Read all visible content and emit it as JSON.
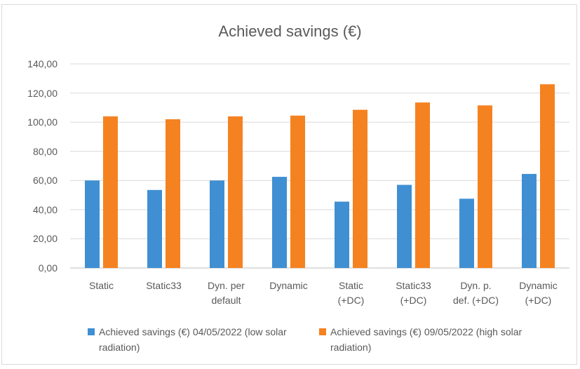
{
  "chart_data": {
    "type": "bar",
    "title": "Achieved savings  (€)",
    "categories": [
      "Static",
      "Static33",
      "Dyn. per default",
      "Dynamic",
      "Static (+DC)",
      "Static33 (+DC)",
      "Dyn. p. def. (+DC)",
      "Dynamic (+DC)"
    ],
    "series": [
      {
        "name": "Achieved savings  (€) 04/05/2022 (low solar radiation)",
        "color": "#3f8fd2",
        "values": [
          60,
          53.5,
          60,
          62.5,
          45.5,
          57,
          47.5,
          64.5
        ]
      },
      {
        "name": "Achieved savings  (€) 09/05/2022 (high solar radiation)",
        "color": "#f58220",
        "values": [
          104,
          102,
          104,
          104.5,
          108.5,
          113.5,
          111.5,
          126
        ]
      }
    ],
    "ylim": [
      0,
      140
    ],
    "yticks": [
      {
        "value": 0,
        "label": "0,00"
      },
      {
        "value": 20,
        "label": "20,00"
      },
      {
        "value": 40,
        "label": "40,00"
      },
      {
        "value": 60,
        "label": "60,00"
      },
      {
        "value": 80,
        "label": "80,00"
      },
      {
        "value": 100,
        "label": "100,00"
      },
      {
        "value": 120,
        "label": "120,00"
      },
      {
        "value": 140,
        "label": "140,00"
      }
    ],
    "grid": true,
    "legend": "bottom"
  }
}
